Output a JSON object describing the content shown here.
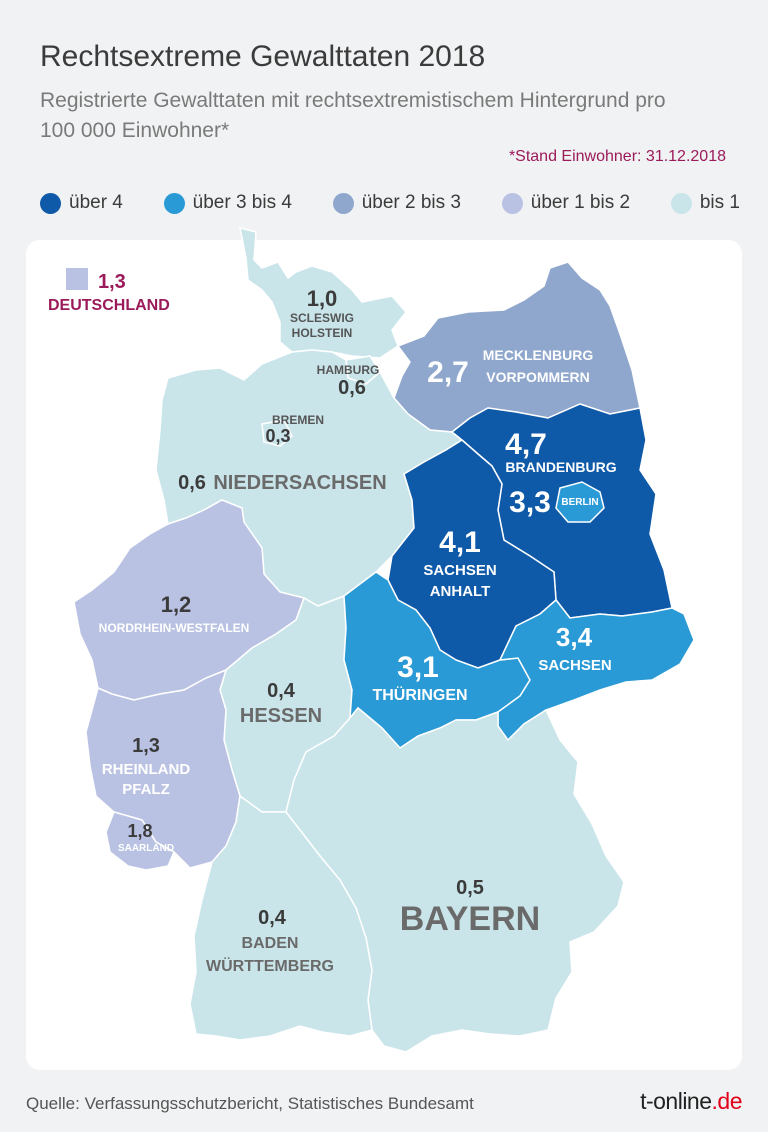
{
  "title": "Rechtsextreme Gewalttaten 2018",
  "subtitle": "Registrierte Gewalttaten mit rechtsextremistischem Hintergrund pro 100 000 Einwohner*",
  "note": "*Stand Einwohner: 31.12.2018",
  "legend": [
    {
      "label": "über 4",
      "color": "#0f5aa8"
    },
    {
      "label": "über 3 bis 4",
      "color": "#2a9ad6"
    },
    {
      "label": "über 2 bis 3",
      "color": "#8fa7cc"
    },
    {
      "label": "über 1 bis 2",
      "color": "#b9c2e3"
    },
    {
      "label": "bis 1",
      "color": "#c9e5ea"
    }
  ],
  "national": {
    "value": "1,3",
    "label": "DEUTSCHLAND",
    "color": "#b9c2e3"
  },
  "states": {
    "sh": {
      "value": "1,0",
      "name1": "SCLESWIG",
      "name2": "HOLSTEIN"
    },
    "hh": {
      "value": "0,6",
      "name1": "HAMBURG"
    },
    "mv": {
      "value": "2,7",
      "name1": "MECKLENBURG",
      "name2": "VORPOMMERN"
    },
    "hb": {
      "value": "0,3",
      "name1": "BREMEN"
    },
    "ni": {
      "value": "0,6",
      "name1": "NIEDERSACHSEN"
    },
    "bb": {
      "value": "4,7",
      "name1": "BRANDENBURG"
    },
    "be": {
      "value": "3,3",
      "name1": "BERLIN"
    },
    "st": {
      "value": "4,1",
      "name1": "SACHSEN",
      "name2": "ANHALT"
    },
    "nw": {
      "value": "1,2",
      "name1": "NORDRHEIN-WESTFALEN"
    },
    "sn": {
      "value": "3,4",
      "name1": "SACHSEN"
    },
    "th": {
      "value": "3,1",
      "name1": "THÜRINGEN"
    },
    "he": {
      "value": "0,4",
      "name1": "HESSEN"
    },
    "rp": {
      "value": "1,3",
      "name1": "RHEINLAND",
      "name2": "PFALZ"
    },
    "sl": {
      "value": "1,8",
      "name1": "SAARLAND"
    },
    "by": {
      "value": "0,5",
      "name1": "BAYERN"
    },
    "bw": {
      "value": "0,4",
      "name1": "BADEN",
      "name2": "WÜRTTEMBERG"
    }
  },
  "source": "Quelle: Verfassungsschutzbericht, Statistisches Bundesamt",
  "brand": {
    "main": "t-online",
    "tld": ".de"
  }
}
